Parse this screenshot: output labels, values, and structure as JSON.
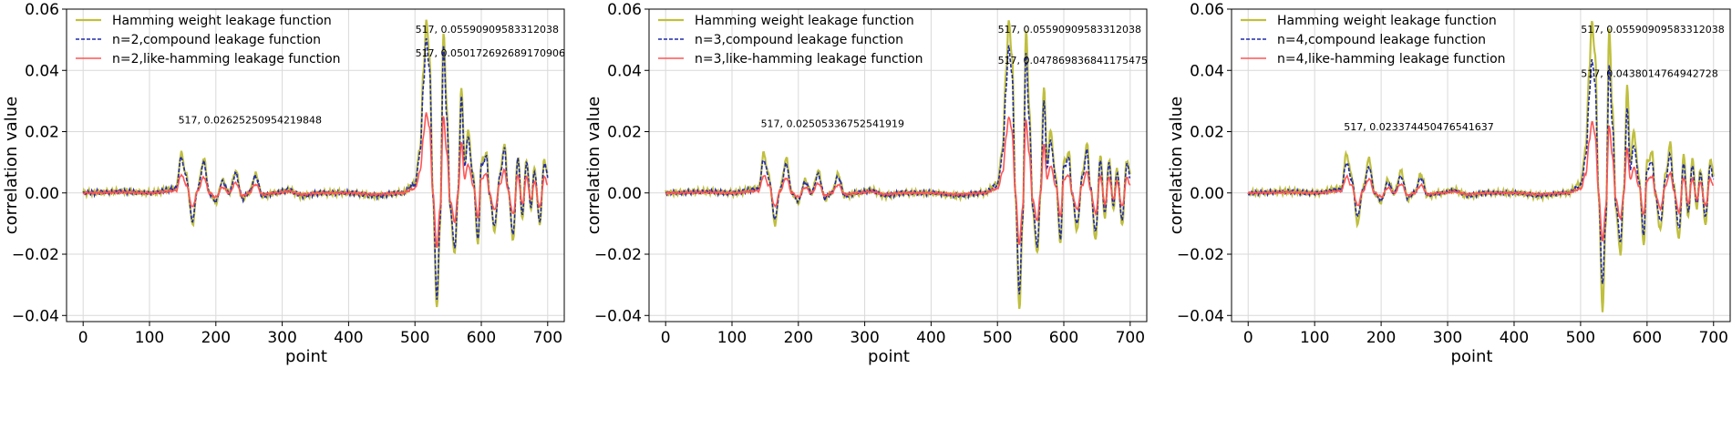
{
  "chart_data": [
    {
      "type": "line",
      "xlabel": "point",
      "ylabel": "correlation value",
      "xlim": [
        -25,
        725
      ],
      "ylim": [
        -0.042,
        0.06
      ],
      "xticks": [
        0,
        100,
        200,
        300,
        400,
        500,
        600,
        700
      ],
      "xtick_labels": [
        "0",
        "100",
        "200",
        "300",
        "400",
        "500",
        "600",
        "700"
      ],
      "yticks": [
        -0.04,
        -0.02,
        0.0,
        0.02,
        0.04,
        0.06
      ],
      "ytick_labels": [
        "−0.04",
        "−0.02",
        "0.00",
        "0.02",
        "0.04",
        "0.06"
      ],
      "grid": true,
      "legend_position": "top-left",
      "series": [
        {
          "name": "Hamming weight leakage function",
          "color": "#bfbf3f",
          "style": "solid",
          "scale": 1.0
        },
        {
          "name": "n=2,compound leakage function",
          "color": "#1f2aa8",
          "style": "dashed",
          "scale": 0.9
        },
        {
          "name": "n=2,like-hamming leakage function",
          "color": "#ff5555",
          "style": "solid",
          "scale": 0.47
        }
      ],
      "annotations": [
        {
          "text": "517, 0.0559090958331203​8",
          "x": 517,
          "y": 0.05591
        },
        {
          "text": "517, 0.050172692689170906",
          "x": 517,
          "y": 0.05017
        },
        {
          "text": "517, 0.02625250954219848",
          "x": 517,
          "y": 0.02625
        }
      ]
    },
    {
      "type": "line",
      "xlabel": "point",
      "ylabel": "correlation value",
      "xlim": [
        -25,
        725
      ],
      "ylim": [
        -0.042,
        0.06
      ],
      "xticks": [
        0,
        100,
        200,
        300,
        400,
        500,
        600,
        700
      ],
      "xtick_labels": [
        "0",
        "100",
        "200",
        "300",
        "400",
        "500",
        "600",
        "700"
      ],
      "yticks": [
        -0.04,
        -0.02,
        0.0,
        0.02,
        0.04,
        0.06
      ],
      "ytick_labels": [
        "−0.04",
        "−0.02",
        "0.00",
        "0.02",
        "0.04",
        "0.06"
      ],
      "grid": true,
      "legend_position": "top-left",
      "series": [
        {
          "name": "Hamming weight leakage function",
          "color": "#bfbf3f",
          "style": "solid",
          "scale": 1.0
        },
        {
          "name": "n=3,compound leakage function",
          "color": "#1f2aa8",
          "style": "dashed",
          "scale": 0.857
        },
        {
          "name": "n=3,like-hamming leakage function",
          "color": "#ff5555",
          "style": "solid",
          "scale": 0.448
        }
      ],
      "annotations": [
        {
          "text": "517, 0.05590909583312038",
          "x": 517,
          "y": 0.05591
        },
        {
          "text": "517, 0.047869836841175475",
          "x": 517,
          "y": 0.04787
        },
        {
          "text": "517, 0.02505336752541919",
          "x": 517,
          "y": 0.02505
        }
      ]
    },
    {
      "type": "line",
      "xlabel": "point",
      "ylabel": "correlation value",
      "xlim": [
        -25,
        725
      ],
      "ylim": [
        -0.042,
        0.06
      ],
      "xticks": [
        0,
        100,
        200,
        300,
        400,
        500,
        600,
        700
      ],
      "xtick_labels": [
        "0",
        "100",
        "200",
        "300",
        "400",
        "500",
        "600",
        "700"
      ],
      "yticks": [
        -0.04,
        -0.02,
        0.0,
        0.02,
        0.04,
        0.06
      ],
      "ytick_labels": [
        "−0.04",
        "−0.02",
        "0.00",
        "0.02",
        "0.04",
        "0.06"
      ],
      "grid": true,
      "legend_position": "top-left",
      "series": [
        {
          "name": "Hamming weight leakage function",
          "color": "#bfbf3f",
          "style": "solid",
          "scale": 1.0
        },
        {
          "name": "n=4,compound leakage function",
          "color": "#1f2aa8",
          "style": "dashed",
          "scale": 0.784
        },
        {
          "name": "n=4,like-hamming leakage function",
          "color": "#ff5555",
          "style": "solid",
          "scale": 0.418
        }
      ],
      "annotations": [
        {
          "text": "517, 0.05590909583312038",
          "x": 517,
          "y": 0.05591
        },
        {
          "text": "517, 0.0438014764942728",
          "x": 517,
          "y": 0.0438
        },
        {
          "text": "517, 0.023374450476541637",
          "x": 517,
          "y": 0.02337
        }
      ]
    }
  ],
  "base_signal": {
    "keypoints_x": [
      0,
      60,
      100,
      140,
      148,
      155,
      165,
      172,
      182,
      190,
      200,
      210,
      220,
      230,
      240,
      250,
      260,
      270,
      290,
      310,
      330,
      360,
      400,
      440,
      480,
      500,
      508,
      513,
      517,
      522,
      527,
      533,
      538,
      543,
      548,
      553,
      560,
      565,
      570,
      575,
      580,
      588,
      595,
      600,
      608,
      612,
      620,
      628,
      635,
      640,
      648,
      655,
      662,
      668,
      675,
      680,
      688,
      695,
      700
    ],
    "keypoints_y": [
      0.0,
      0.0005,
      0.0,
      0.0015,
      0.0128,
      0.006,
      -0.01,
      0.001,
      0.011,
      0.0,
      -0.003,
      0.004,
      0.0,
      0.007,
      -0.002,
      0.0,
      0.006,
      -0.001,
      0.0,
      0.001,
      -0.001,
      0.0,
      0.0,
      -0.001,
      0.0,
      0.003,
      0.015,
      0.04,
      0.05591,
      0.045,
      0.0,
      -0.038,
      -0.01,
      0.053,
      0.028,
      -0.005,
      -0.02,
      0.0,
      0.035,
      0.01,
      0.02,
      0.005,
      -0.017,
      0.01,
      0.013,
      0.0,
      -0.012,
      0.006,
      0.016,
      0.002,
      -0.015,
      0.012,
      -0.008,
      0.011,
      -0.005,
      0.008,
      -0.01,
      0.011,
      0.006
    ]
  }
}
